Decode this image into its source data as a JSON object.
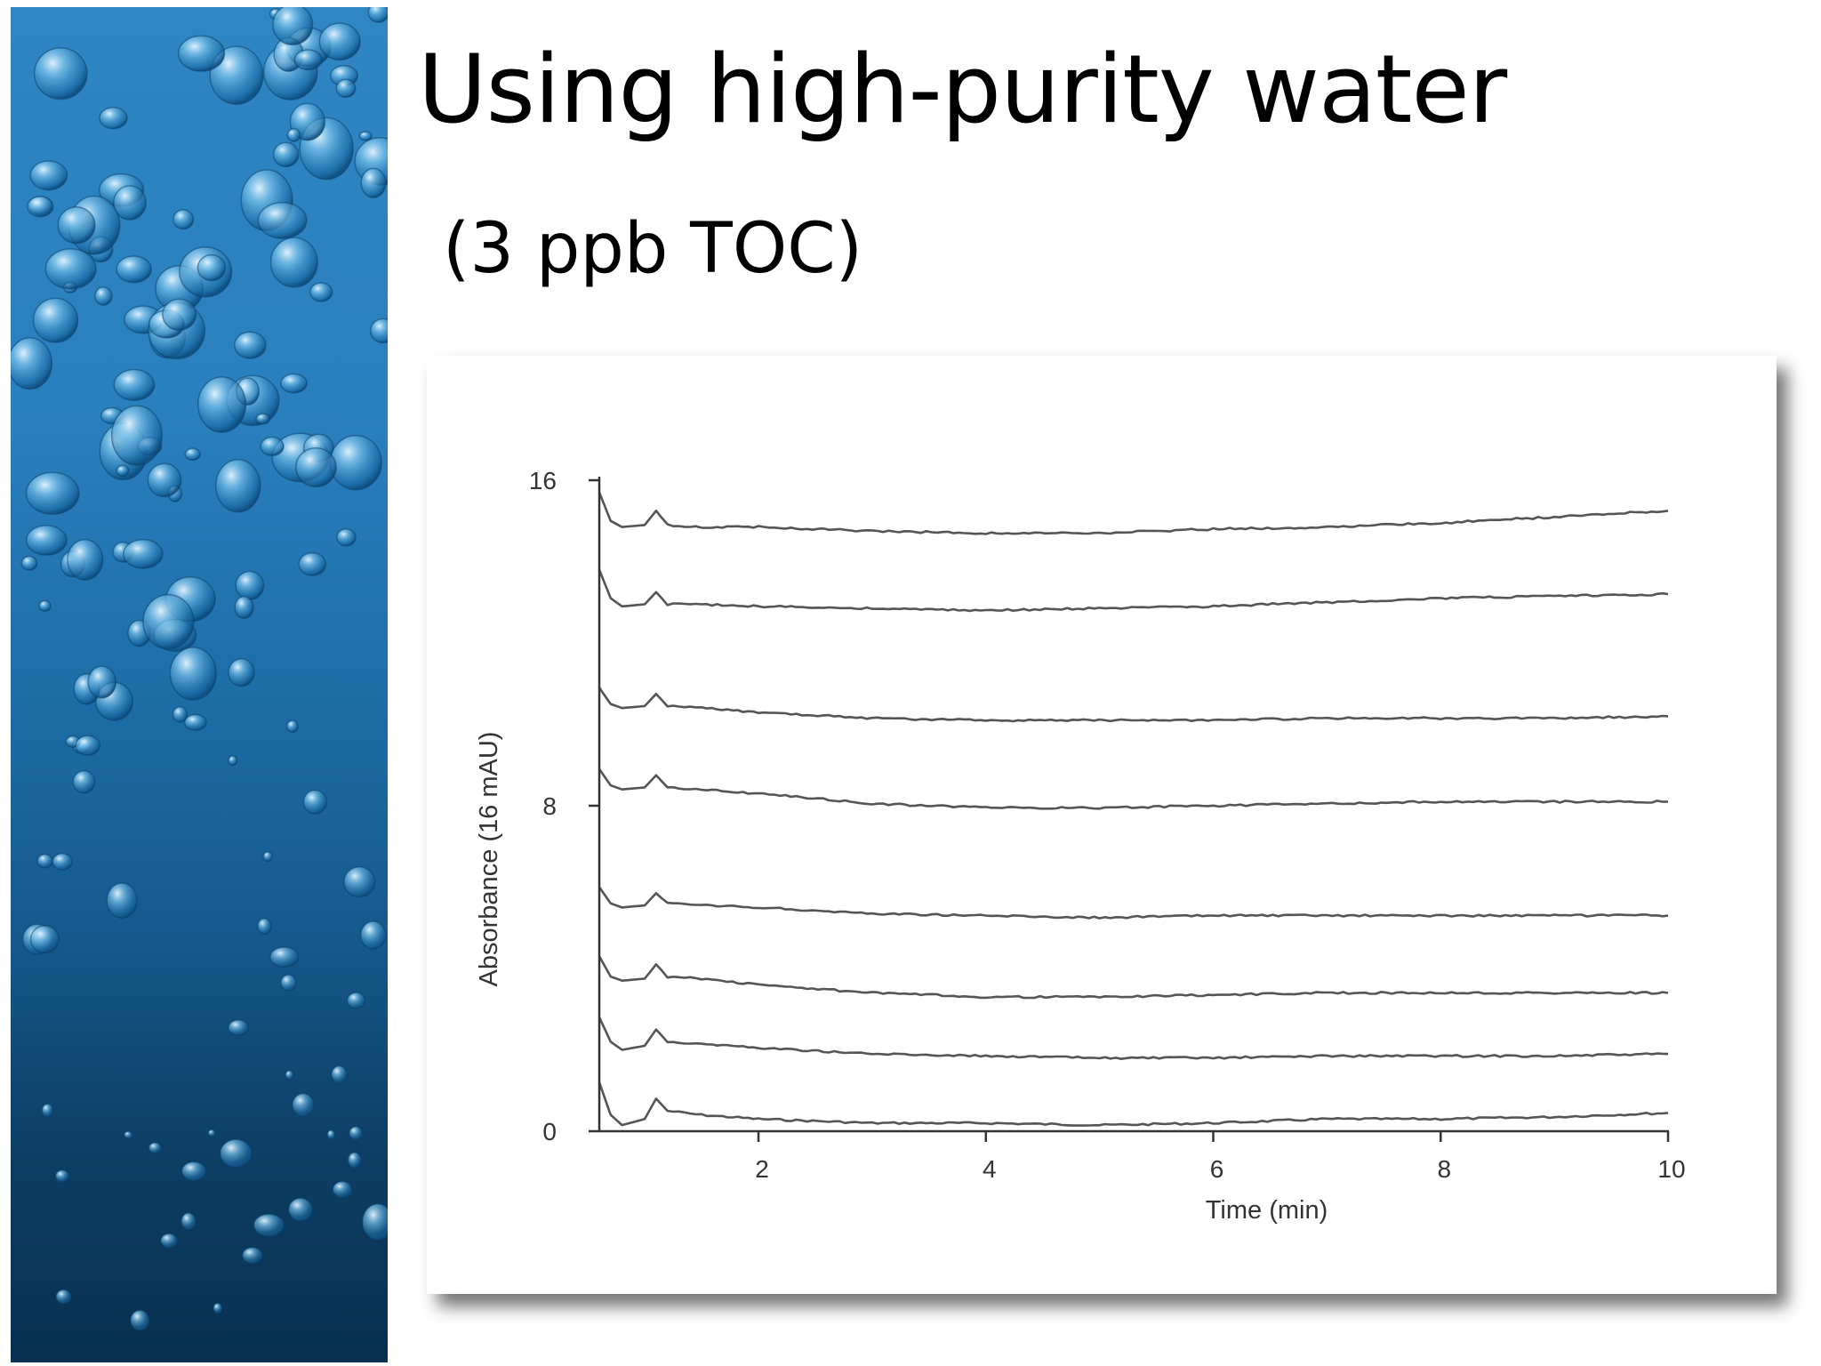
{
  "slide": {
    "title": "Using high-purity water",
    "subtitle": "(3 ppb TOC)",
    "decorative_image": "underwater-bubbles-photo"
  },
  "colors": {
    "trace": "#555555",
    "axis": "#333333",
    "panel_top": "#2f86c2",
    "panel_bottom": "#08304f"
  },
  "chart_data": {
    "type": "line",
    "title": "",
    "xlabel": "Time (min)",
    "ylabel": "Absorbance (16 mAU)",
    "xlim": [
      0.6,
      10
    ],
    "ylim": [
      0,
      16
    ],
    "x_ticks": [
      2,
      4,
      6,
      8,
      10
    ],
    "y_ticks": [
      0,
      8,
      16
    ],
    "grid": false,
    "legend": "none",
    "series": [
      {
        "x": [
          0.6,
          0.7,
          0.8,
          1.0,
          1.1,
          1.2,
          1.5,
          2,
          3,
          4,
          5,
          6,
          7,
          8,
          9,
          10
        ],
        "y": [
          1.2,
          0.4,
          0.15,
          0.3,
          0.8,
          0.5,
          0.4,
          0.3,
          0.2,
          0.2,
          0.15,
          0.2,
          0.3,
          0.3,
          0.35,
          0.45
        ]
      },
      {
        "x": [
          0.6,
          0.7,
          0.8,
          1.0,
          1.1,
          1.2,
          1.5,
          2,
          3,
          4,
          5,
          6,
          7,
          8,
          9,
          10
        ],
        "y": [
          2.8,
          2.2,
          2.0,
          2.1,
          2.5,
          2.2,
          2.15,
          2.05,
          1.9,
          1.85,
          1.8,
          1.8,
          1.85,
          1.85,
          1.85,
          1.9
        ]
      },
      {
        "x": [
          0.6,
          0.7,
          0.8,
          1.0,
          1.1,
          1.2,
          1.5,
          2,
          3,
          4,
          5,
          6,
          7,
          8,
          9,
          10
        ],
        "y": [
          4.3,
          3.8,
          3.7,
          3.75,
          4.1,
          3.8,
          3.75,
          3.6,
          3.4,
          3.3,
          3.3,
          3.35,
          3.4,
          3.4,
          3.4,
          3.4
        ]
      },
      {
        "x": [
          0.6,
          0.7,
          0.8,
          1.0,
          1.1,
          1.2,
          1.5,
          2,
          3,
          4,
          5,
          6,
          7,
          8,
          9,
          10
        ],
        "y": [
          6.0,
          5.6,
          5.5,
          5.55,
          5.85,
          5.6,
          5.55,
          5.5,
          5.35,
          5.3,
          5.25,
          5.3,
          5.3,
          5.3,
          5.3,
          5.3
        ]
      },
      {
        "x": [
          0.6,
          0.7,
          0.8,
          1.0,
          1.1,
          1.2,
          1.5,
          2,
          3,
          4,
          5,
          6,
          7,
          8,
          9,
          10
        ],
        "y": [
          8.9,
          8.5,
          8.4,
          8.45,
          8.75,
          8.45,
          8.4,
          8.3,
          8.05,
          7.95,
          7.95,
          8.0,
          8.05,
          8.1,
          8.1,
          8.1
        ]
      },
      {
        "x": [
          0.6,
          0.7,
          0.8,
          1.0,
          1.1,
          1.2,
          1.5,
          2,
          3,
          4,
          5,
          6,
          7,
          8,
          9,
          10
        ],
        "y": [
          10.9,
          10.5,
          10.4,
          10.45,
          10.75,
          10.45,
          10.4,
          10.3,
          10.15,
          10.1,
          10.1,
          10.1,
          10.15,
          10.15,
          10.15,
          10.2
        ]
      },
      {
        "x": [
          0.6,
          0.7,
          0.8,
          1.0,
          1.1,
          1.2,
          1.5,
          2,
          3,
          4,
          5,
          6,
          7,
          8,
          9,
          10
        ],
        "y": [
          13.8,
          13.1,
          12.9,
          12.95,
          13.25,
          12.95,
          12.95,
          12.9,
          12.85,
          12.8,
          12.85,
          12.9,
          13.0,
          13.1,
          13.15,
          13.2
        ]
      },
      {
        "x": [
          0.6,
          0.7,
          0.8,
          1.0,
          1.1,
          1.2,
          1.5,
          2,
          3,
          4,
          5,
          6,
          7,
          8,
          9,
          10
        ],
        "y": [
          15.7,
          15.0,
          14.85,
          14.9,
          15.25,
          14.9,
          14.85,
          14.85,
          14.75,
          14.7,
          14.7,
          14.8,
          14.85,
          14.95,
          15.1,
          15.25
        ]
      }
    ]
  }
}
